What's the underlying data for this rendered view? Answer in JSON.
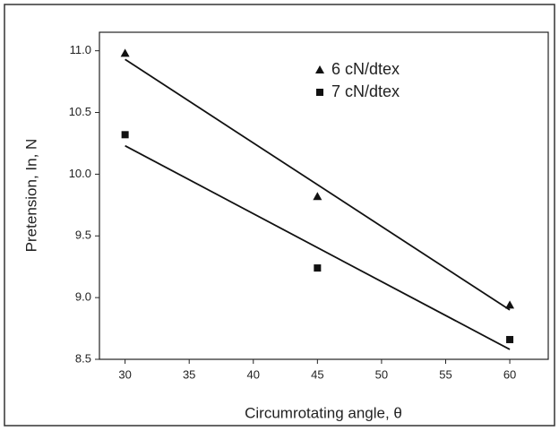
{
  "chart_data": {
    "type": "scatter",
    "x_label": "Circumrotating angle, θ",
    "y_label": "Pretension, In, N",
    "x": [
      30,
      45,
      60
    ],
    "series": [
      {
        "name": "6 cN/dtex",
        "color": "#111111",
        "marker": "triangle",
        "values": [
          10.98,
          9.82,
          8.94
        ],
        "fit": {
          "x": [
            30,
            60
          ],
          "y": [
            10.93,
            8.9
          ]
        }
      },
      {
        "name": "7 cN/dtex",
        "color": "#111111",
        "marker": "square",
        "values": [
          10.32,
          9.24,
          8.66
        ],
        "fit": {
          "x": [
            30,
            60
          ],
          "y": [
            10.23,
            8.58
          ]
        }
      }
    ],
    "xlim": [
      28,
      63
    ],
    "xticks": [
      30,
      35,
      40,
      45,
      50,
      55,
      60
    ],
    "ylim": [
      8.5,
      11.15
    ],
    "yticks": [
      {
        "value": 8.5,
        "label": "8.5"
      },
      {
        "value": 9,
        "label": "9.0"
      },
      9.5,
      {
        "value": 10,
        "label": "10.0"
      },
      10.5,
      {
        "value": 11,
        "label": "11.0"
      }
    ],
    "legend": "upper right"
  }
}
